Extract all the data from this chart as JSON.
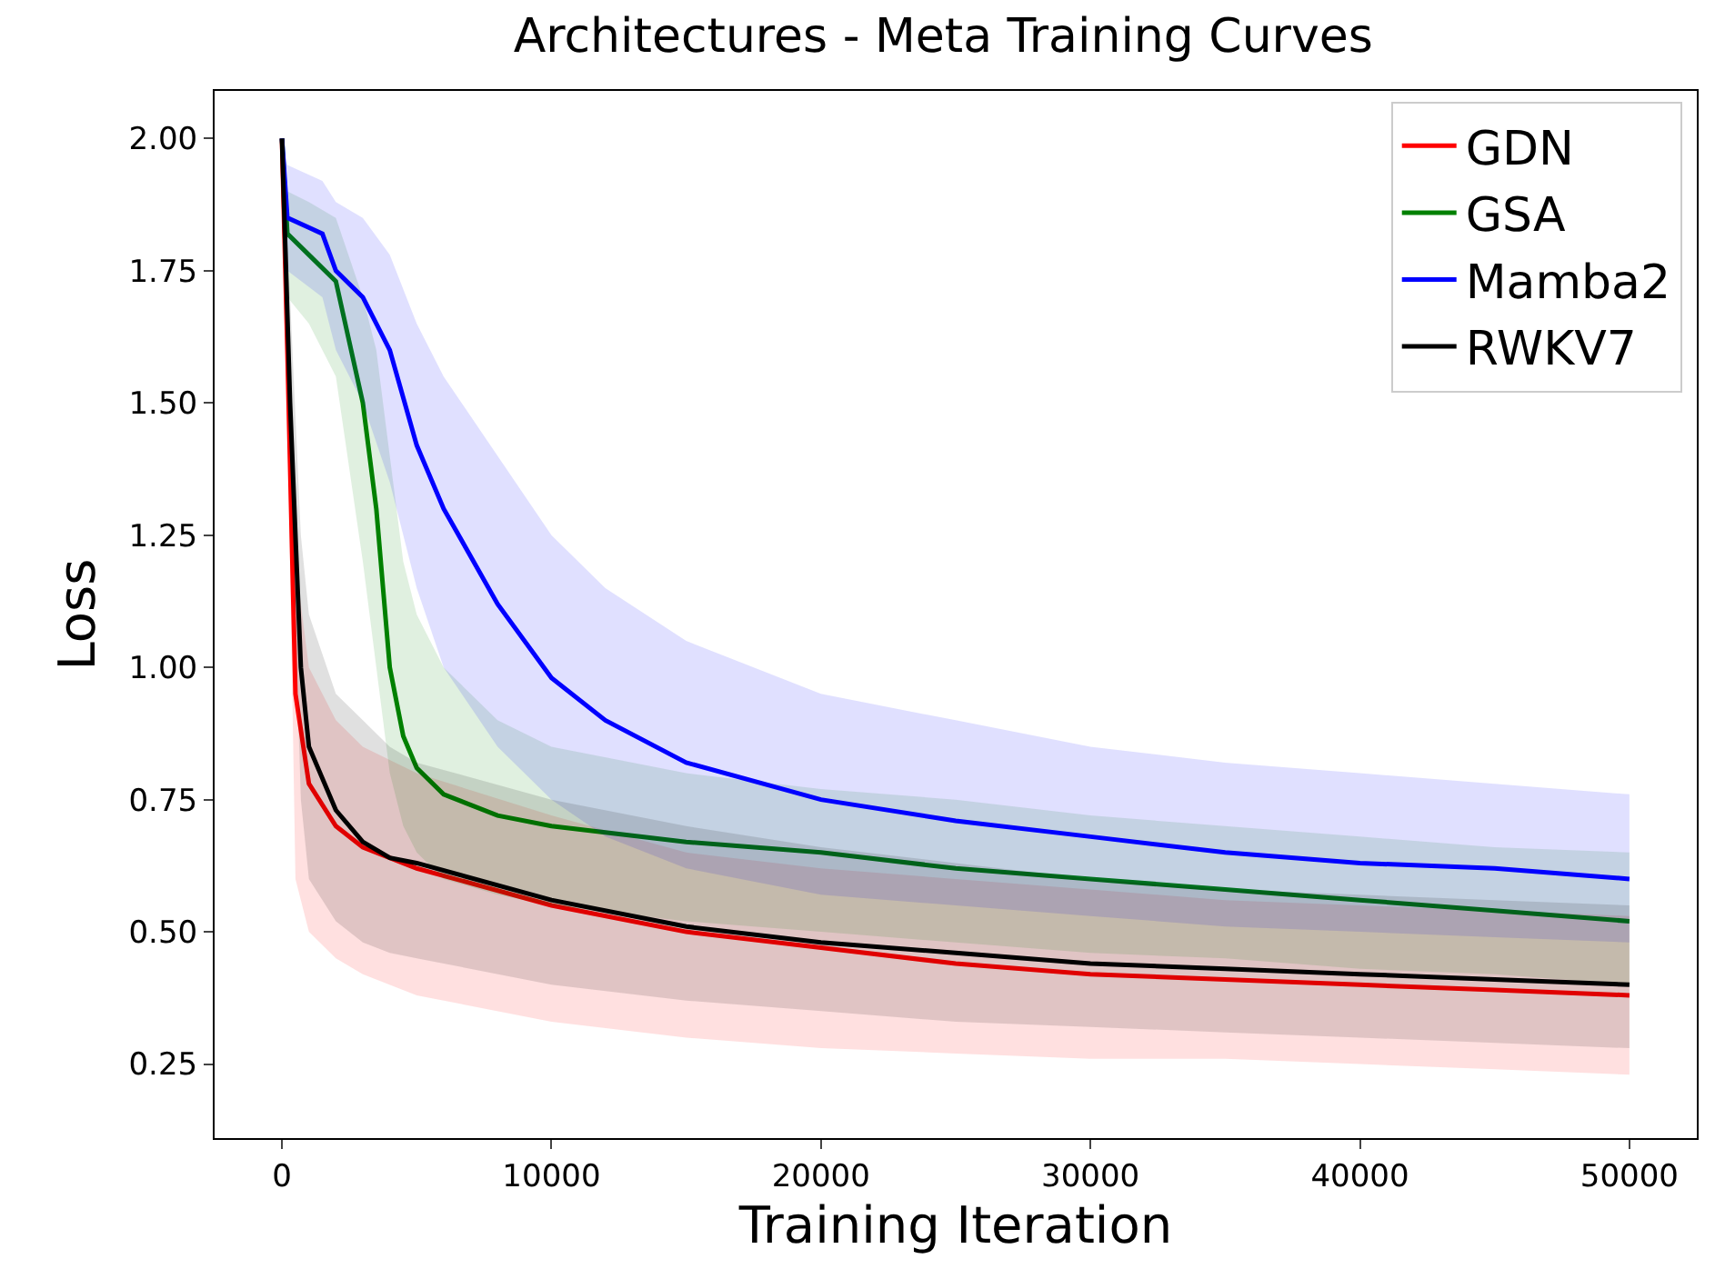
{
  "chart_data": {
    "type": "line",
    "title": "Architectures - Meta Training Curves",
    "xlabel": "Training Iteration",
    "ylabel": "Loss",
    "xlim": [
      -2500,
      52500
    ],
    "ylim": [
      0.11,
      2.09
    ],
    "xticks": [
      0,
      10000,
      20000,
      30000,
      40000,
      50000
    ],
    "yticks": [
      {
        "value": 0.25,
        "label": "0.25"
      },
      {
        "value": 0.5,
        "label": "0.50"
      },
      {
        "value": 0.75,
        "label": "0.75"
      },
      {
        "value": 1,
        "label": "1.00"
      },
      {
        "value": 1.25,
        "label": "1.25"
      },
      {
        "value": 1.5,
        "label": "1.50"
      },
      {
        "value": 1.75,
        "label": "1.75"
      },
      {
        "value": 2,
        "label": "2.00"
      }
    ],
    "grid": false,
    "legend": "top right",
    "marker": "none",
    "line_style": "solid",
    "series": [
      {
        "name": "GDN",
        "color": "#ff0000",
        "x": [
          0,
          200,
          500,
          1000,
          2000,
          3000,
          5000,
          10000,
          15000,
          20000,
          25000,
          30000,
          35000,
          40000,
          45000,
          50000
        ],
        "values": [
          2.0,
          1.6,
          0.95,
          0.78,
          0.7,
          0.66,
          0.62,
          0.55,
          0.5,
          0.47,
          0.44,
          0.42,
          0.41,
          0.4,
          0.39,
          0.38
        ],
        "lower": [
          2.0,
          1.5,
          0.6,
          0.5,
          0.45,
          0.42,
          0.38,
          0.33,
          0.3,
          0.28,
          0.27,
          0.26,
          0.26,
          0.25,
          0.24,
          0.23
        ],
        "upper": [
          2.0,
          1.8,
          1.2,
          1.0,
          0.9,
          0.85,
          0.8,
          0.72,
          0.65,
          0.62,
          0.6,
          0.58,
          0.56,
          0.55,
          0.54,
          0.53
        ]
      },
      {
        "name": "GSA",
        "color": "#008000",
        "x": [
          0,
          200,
          1000,
          2000,
          3000,
          3500,
          4000,
          4500,
          5000,
          6000,
          8000,
          10000,
          15000,
          20000,
          25000,
          30000,
          35000,
          40000,
          45000,
          50000
        ],
        "values": [
          2.0,
          1.82,
          1.78,
          1.73,
          1.5,
          1.3,
          1.0,
          0.87,
          0.81,
          0.76,
          0.72,
          0.7,
          0.67,
          0.65,
          0.62,
          0.6,
          0.58,
          0.56,
          0.54,
          0.52
        ],
        "lower": [
          2.0,
          1.7,
          1.65,
          1.55,
          1.2,
          1.0,
          0.8,
          0.7,
          0.65,
          0.6,
          0.57,
          0.55,
          0.52,
          0.5,
          0.48,
          0.46,
          0.45,
          0.43,
          0.42,
          0.4
        ],
        "upper": [
          2.0,
          1.9,
          1.88,
          1.85,
          1.7,
          1.6,
          1.4,
          1.2,
          1.1,
          1.0,
          0.9,
          0.85,
          0.8,
          0.77,
          0.75,
          0.72,
          0.7,
          0.68,
          0.66,
          0.65
        ]
      },
      {
        "name": "Mamba2",
        "color": "#0000ff",
        "x": [
          0,
          200,
          1500,
          2000,
          3000,
          4000,
          5000,
          6000,
          8000,
          10000,
          12000,
          15000,
          20000,
          25000,
          30000,
          35000,
          40000,
          45000,
          50000
        ],
        "values": [
          2.0,
          1.85,
          1.82,
          1.75,
          1.7,
          1.6,
          1.42,
          1.3,
          1.12,
          0.98,
          0.9,
          0.82,
          0.75,
          0.71,
          0.68,
          0.65,
          0.63,
          0.62,
          0.6
        ],
        "lower": [
          2.0,
          1.75,
          1.7,
          1.6,
          1.5,
          1.35,
          1.15,
          1.0,
          0.85,
          0.75,
          0.68,
          0.62,
          0.57,
          0.55,
          0.53,
          0.51,
          0.5,
          0.49,
          0.48
        ],
        "upper": [
          2.0,
          1.95,
          1.92,
          1.88,
          1.85,
          1.78,
          1.65,
          1.55,
          1.4,
          1.25,
          1.15,
          1.05,
          0.95,
          0.9,
          0.85,
          0.82,
          0.8,
          0.78,
          0.76
        ]
      },
      {
        "name": "RWKV7",
        "color": "#000000",
        "x": [
          0,
          300,
          700,
          1000,
          2000,
          3000,
          4000,
          5000,
          10000,
          15000,
          20000,
          25000,
          30000,
          35000,
          40000,
          45000,
          50000
        ],
        "values": [
          2.0,
          1.5,
          1.0,
          0.85,
          0.73,
          0.67,
          0.64,
          0.63,
          0.56,
          0.51,
          0.48,
          0.46,
          0.44,
          0.43,
          0.42,
          0.41,
          0.4
        ],
        "lower": [
          2.0,
          1.4,
          0.75,
          0.6,
          0.52,
          0.48,
          0.46,
          0.45,
          0.4,
          0.37,
          0.35,
          0.33,
          0.32,
          0.31,
          0.3,
          0.29,
          0.28
        ],
        "upper": [
          2.0,
          1.7,
          1.25,
          1.1,
          0.95,
          0.9,
          0.85,
          0.82,
          0.75,
          0.7,
          0.66,
          0.63,
          0.6,
          0.58,
          0.57,
          0.56,
          0.55
        ]
      }
    ]
  }
}
